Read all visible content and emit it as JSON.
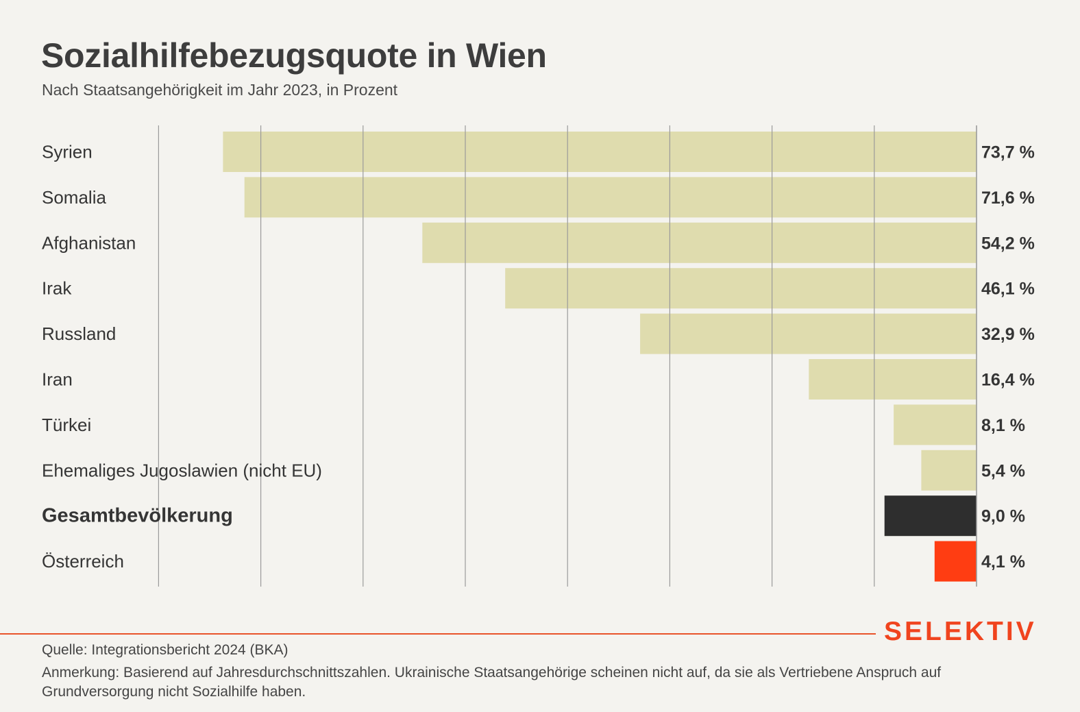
{
  "title": "Sozialhilfebezugsquote in Wien",
  "subtitle": "Nach Staatsangehörigkeit im Jahr 2023, in Prozent",
  "brand": "SELEKTIV",
  "source": "Quelle: Integrationsbericht 2024 (BKA)",
  "note": "Anmerkung: Basierend auf Jahresdurchschnittszahlen. Ukrainische Staatsangehörige scheinen nicht auf, da sie als Vertriebene Anspruch auf Grundversorgung nicht Sozialhilfe haben.",
  "colors": {
    "background": "#f4f3ef",
    "bar_default": "#dfdcae",
    "bar_total": "#2e2e2e",
    "bar_austria": "#ff3d12",
    "gridline": "#9a9a9a",
    "accent": "#f0441e"
  },
  "chart_data": {
    "type": "bar",
    "orientation": "horizontal",
    "direction": "right-to-left",
    "title": "Sozialhilfebezugsquote in Wien",
    "subtitle": "Nach Staatsangehörigkeit im Jahr 2023, in Prozent",
    "xlabel": "",
    "ylabel": "",
    "xlim": [
      0,
      80
    ],
    "grid": true,
    "grid_step": 10,
    "unit": "%",
    "categories": [
      "Syrien",
      "Somalia",
      "Afghanistan",
      "Irak",
      "Russland",
      "Iran",
      "Türkei",
      "Ehemaliges Jugoslawien (nicht EU)",
      "Gesamtbevölkerung",
      "Österreich"
    ],
    "values": [
      73.7,
      71.6,
      54.2,
      46.1,
      32.9,
      16.4,
      8.1,
      5.4,
      9.0,
      4.1
    ],
    "value_labels": [
      "73,7 %",
      "71,6 %",
      "54,2 %",
      "46,1 %",
      "32,9 %",
      "16,4 %",
      "8,1 %",
      "5,4 %",
      "9,0 %",
      "4,1 %"
    ],
    "bar_roles": [
      "default",
      "default",
      "default",
      "default",
      "default",
      "default",
      "default",
      "default",
      "total",
      "austria"
    ]
  }
}
